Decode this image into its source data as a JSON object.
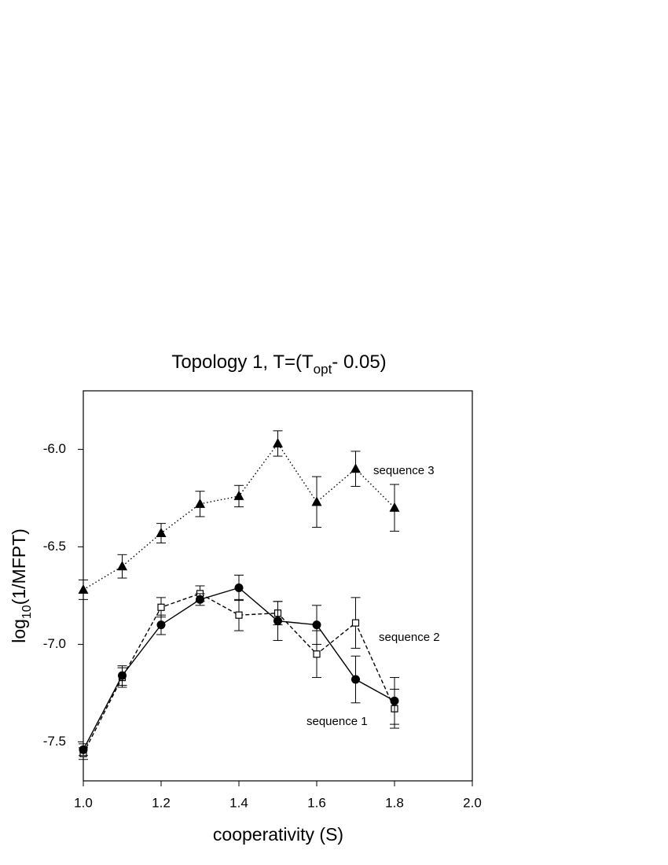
{
  "chart_data": {
    "type": "line",
    "title": [
      "Topology 1, T=(T",
      "opt",
      "- 0.05)"
    ],
    "x_label": "cooperativity (S)",
    "y_label": [
      "log",
      "10",
      "(1/MFPT)"
    ],
    "x": [
      1.0,
      1.1,
      1.2,
      1.3,
      1.4,
      1.5,
      1.6,
      1.7,
      1.8
    ],
    "xlim": [
      1.0,
      2.0
    ],
    "xticks": [
      {
        "value": 1,
        "label": "1.0"
      },
      1.2,
      1.4,
      1.6,
      1.8,
      {
        "value": 2,
        "label": "2.0"
      }
    ],
    "ylim": [
      -7.7,
      -5.7
    ],
    "yticks": [
      {
        "value": -6,
        "label": "-6.0"
      },
      -6.5,
      {
        "value": -7,
        "label": "-7.0"
      },
      -7.5
    ],
    "grid": false,
    "series": [
      {
        "name": "sequence 3",
        "color": "#000000",
        "marker": "triangle",
        "dash": "dotted",
        "values": [
          -6.72,
          -6.6,
          -6.43,
          -6.28,
          -6.24,
          -5.97,
          -6.27,
          -6.1,
          -6.3
        ],
        "errors": [
          0.05,
          0.06,
          0.05,
          0.065,
          0.055,
          0.065,
          0.13,
          0.09,
          0.12
        ]
      },
      {
        "name": "sequence 2",
        "color": "#000000",
        "marker": "square",
        "dash": "dashed",
        "values": [
          -7.56,
          -7.17,
          -6.81,
          -6.74,
          -6.85,
          -6.84,
          -7.05,
          -6.89,
          -7.33
        ],
        "errors": [
          0.03,
          0.05,
          0.05,
          0.04,
          0.08,
          0.06,
          0.12,
          0.13,
          0.1
        ]
      },
      {
        "name": "sequence 1",
        "color": "#000000",
        "marker": "circle",
        "dash": "solid",
        "values": [
          -7.54,
          -7.16,
          -6.9,
          -6.77,
          -6.71,
          -6.88,
          -6.9,
          -7.18,
          -7.29
        ],
        "errors": [
          0.03,
          0.05,
          0.05,
          0.03,
          0.065,
          0.1,
          0.1,
          0.12,
          0.12
        ]
      }
    ]
  }
}
